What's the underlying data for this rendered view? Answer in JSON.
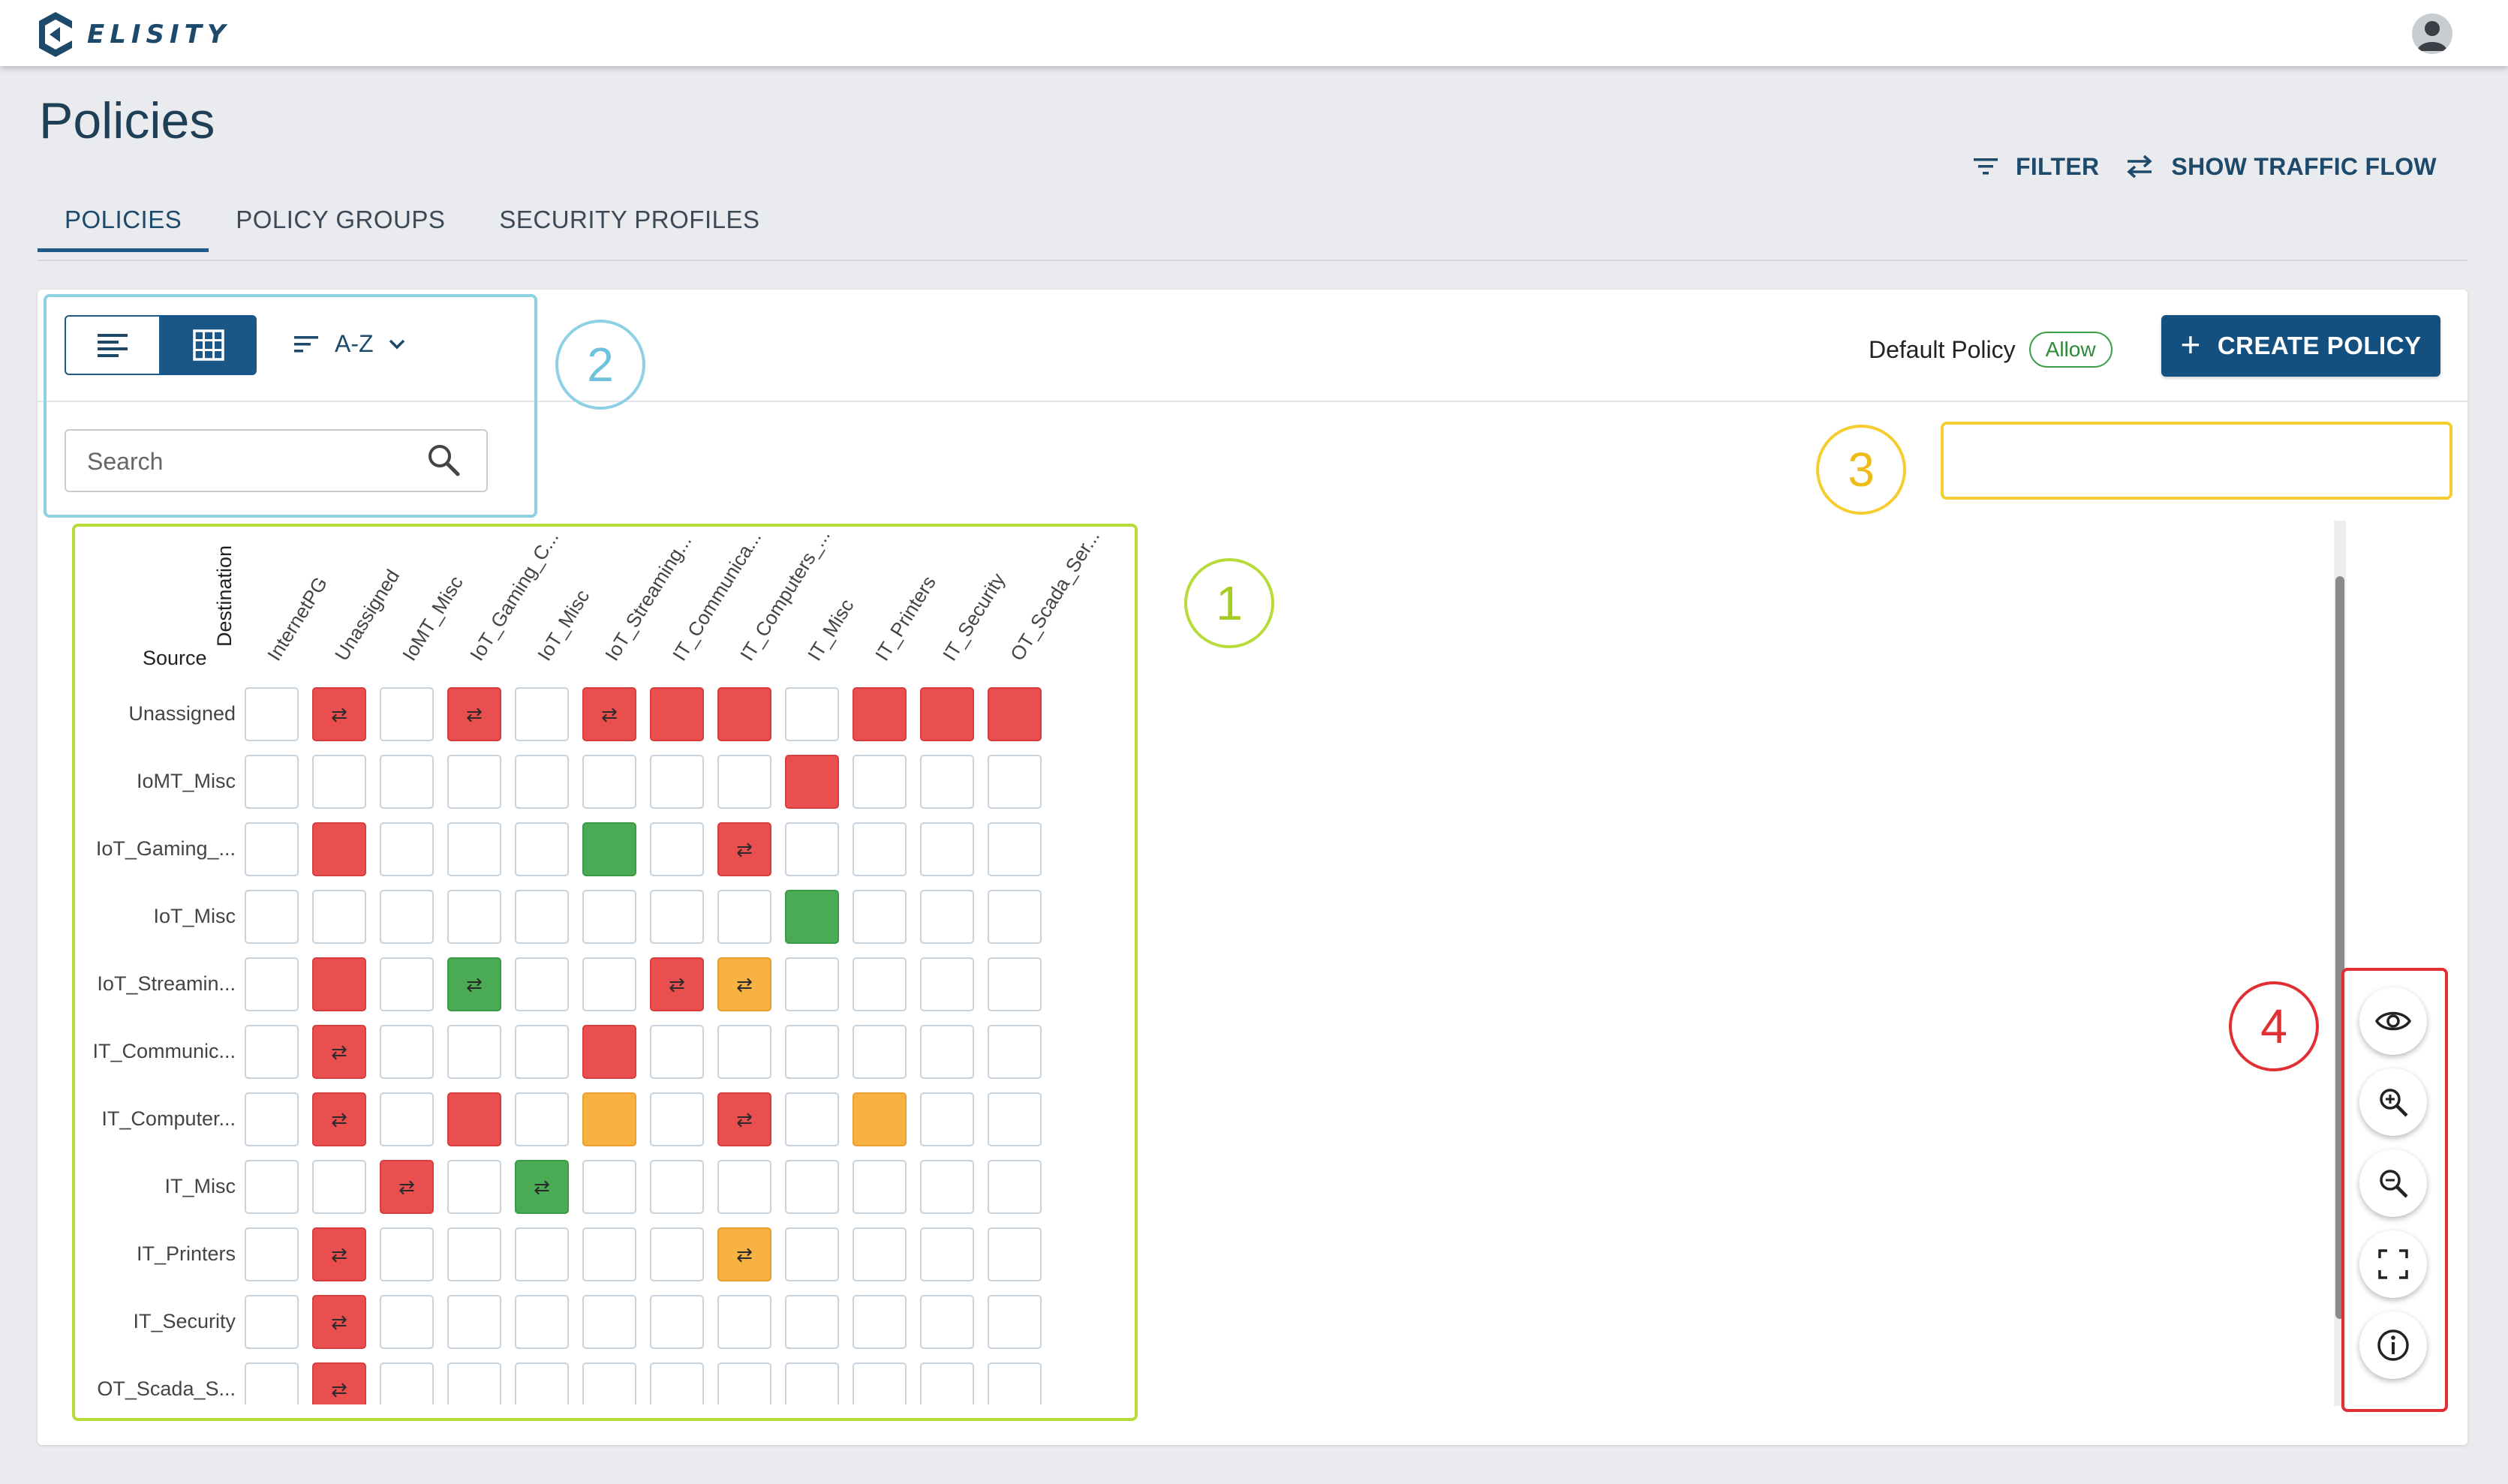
{
  "brand": {
    "name": "ELISITY",
    "color": "#1d4a6b"
  },
  "page": {
    "title": "Policies"
  },
  "tabs": [
    {
      "label": "POLICIES",
      "active": true
    },
    {
      "label": "POLICY GROUPS",
      "active": false
    },
    {
      "label": "SECURITY PROFILES",
      "active": false
    }
  ],
  "toolbar": {
    "sort_label": "A-Z",
    "search_placeholder": "Search",
    "default_policy_label": "Default Policy",
    "default_policy_value": "Allow",
    "create_policy_label": "CREATE POLICY",
    "filter_label": "FILTER",
    "traffic_flow_label": "SHOW TRAFFIC FLOW"
  },
  "annotations": [
    "1",
    "2",
    "3",
    "4"
  ],
  "matrix": {
    "source_label": "Source",
    "destination_label": "Destination",
    "columns": [
      "InternetPG",
      "Unassigned",
      "IoMT_Misc",
      "IoT_Gaming_C...",
      "IoT_Misc",
      "IoT_Streaming...",
      "IT_Communica...",
      "IT_Computers_...",
      "IT_Misc",
      "IT_Printers",
      "IT_Security",
      "OT_Scada_Ser..."
    ],
    "rows": [
      {
        "label": "Unassigned",
        "cells": [
          "",
          "R*",
          "",
          "R*",
          "",
          "R*",
          "R",
          "R",
          "",
          "R",
          "R",
          "R"
        ]
      },
      {
        "label": "IoMT_Misc",
        "cells": [
          "",
          "",
          "",
          "",
          "",
          "",
          "",
          "",
          "R",
          "",
          "",
          ""
        ]
      },
      {
        "label": "IoT_Gaming_...",
        "cells": [
          "",
          "R",
          "",
          "",
          "",
          "G",
          "",
          "R*",
          "",
          "",
          "",
          ""
        ]
      },
      {
        "label": "IoT_Misc",
        "cells": [
          "",
          "",
          "",
          "",
          "",
          "",
          "",
          "",
          "G",
          "",
          "",
          ""
        ]
      },
      {
        "label": "IoT_Streamin...",
        "cells": [
          "",
          "R",
          "",
          "G*",
          "",
          "",
          "R*",
          "O*",
          "",
          "",
          "",
          ""
        ]
      },
      {
        "label": "IT_Communic...",
        "cells": [
          "",
          "R*",
          "",
          "",
          "",
          "R",
          "",
          "",
          "",
          "",
          "",
          ""
        ]
      },
      {
        "label": "IT_Computer...",
        "cells": [
          "",
          "R*",
          "",
          "R",
          "",
          "O",
          "",
          "R*",
          "",
          "O",
          "",
          ""
        ]
      },
      {
        "label": "IT_Misc",
        "cells": [
          "",
          "",
          "R*",
          "",
          "G*",
          "",
          "",
          "",
          "",
          "",
          "",
          ""
        ]
      },
      {
        "label": "IT_Printers",
        "cells": [
          "",
          "R*",
          "",
          "",
          "",
          "",
          "",
          "O*",
          "",
          "",
          "",
          ""
        ]
      },
      {
        "label": "IT_Security",
        "cells": [
          "",
          "R*",
          "",
          "",
          "",
          "",
          "",
          "",
          "",
          "",
          "",
          ""
        ]
      },
      {
        "label": "OT_Scada_S...",
        "cells": [
          "",
          "R*",
          "",
          "",
          "",
          "",
          "",
          "",
          "",
          "",
          "",
          ""
        ]
      }
    ],
    "legend_colors": {
      "R": "#ea4f4f",
      "G": "#4bab54",
      "O": "#f8b244"
    },
    "bidirectional_glyph": "⇄"
  },
  "side_controls": [
    "eye-icon",
    "zoom-in-icon",
    "zoom-out-icon",
    "fit-screen-icon",
    "info-icon"
  ]
}
